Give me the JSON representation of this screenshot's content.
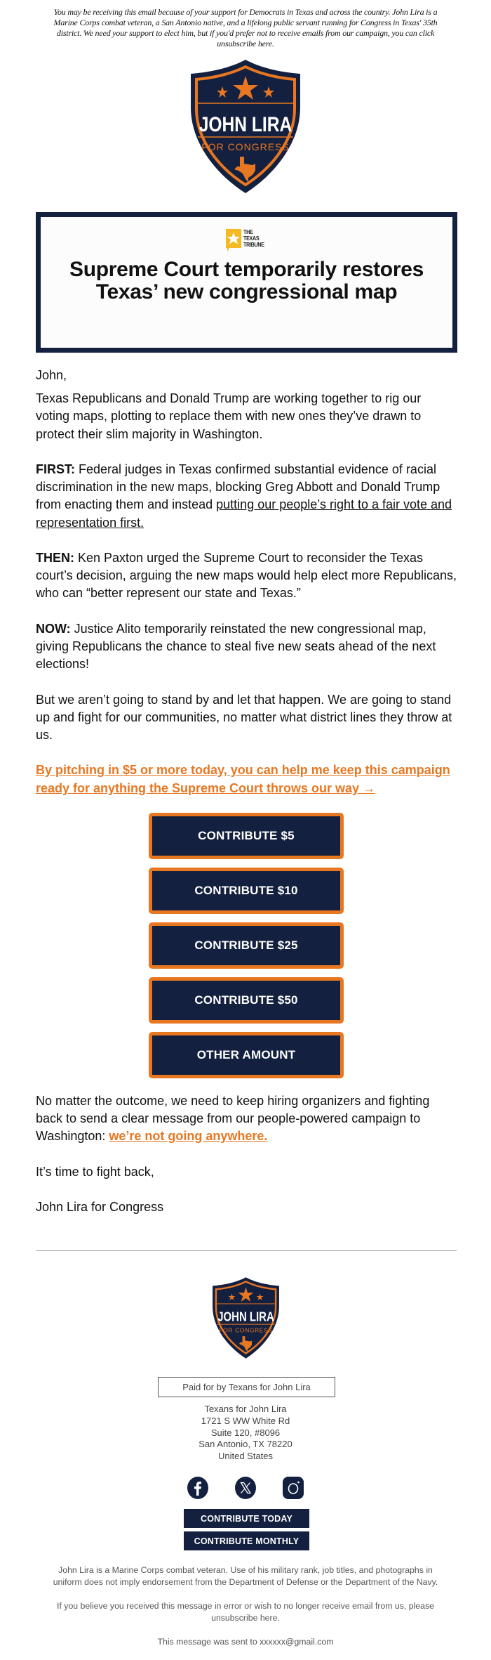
{
  "preheader": "You may be receiving this email because of your support for Democrats in Texas and across the country. John Lira is a Marine Corps combat veteran, a San Antonio native, and a lifelong public servant running for Congress in Texas' 35th district. We need your support to elect him, but if you'd prefer not to receive emails from our campaign, you can click unsubscribe here.",
  "logo": {
    "name": "JOHN LIRA",
    "tagline": "FOR CONGRESS"
  },
  "article": {
    "source_lines": [
      "THE",
      "TEXAS",
      "TRIBUNE"
    ],
    "headline": "Supreme Court temporarily restores Texas’ new congressional map"
  },
  "body": {
    "greeting": "John,",
    "p1": "Texas Republicans and Donald Trump are working together to rig our voting maps, plotting to replace them with new ones they’ve drawn to protect their slim majority in Washington.",
    "first_label": "FIRST:",
    "first_text": " Federal judges in Texas confirmed substantial evidence of racial discrimination in the new maps, blocking Greg Abbott and Donald Trump from enacting them and instead ",
    "first_link": "putting our people’s right to a fair vote and representation first.",
    "then_label": "THEN:",
    "then_text": " Ken Paxton urged the Supreme Court to reconsider the Texas court’s decision, arguing the new maps would help elect more Republicans, who can “better represent our state and Texas.”",
    "now_label": "NOW:",
    "now_text": " Justice Alito temporarily reinstated the new congressional map, giving Republicans the chance to steal five new seats ahead of the next elections!",
    "p5": "But we aren’t going to stand by and let that happen. We are going to stand up and fight for our communities, no matter what district lines they throw at us.",
    "cta_link": "By pitching in $5 or more today, you can help me keep this campaign ready for anything the Supreme Court throws our way →",
    "buttons": [
      "CONTRIBUTE $5",
      "CONTRIBUTE $10",
      "CONTRIBUTE $25",
      "CONTRIBUTE $50",
      "OTHER AMOUNT"
    ],
    "p6_text": "No matter the outcome, we need to keep hiring organizers and fighting back to send a clear message from our people-powered campaign to Washington: ",
    "p6_link": "we’re not going anywhere.",
    "signoff": "It’s time to fight back,",
    "signature": "John Lira for Congress"
  },
  "footer": {
    "paid_for": "Paid for by Texans for John Lira",
    "address": [
      "Texans for John Lira",
      "1721 S WW White Rd",
      "Suite 120, #8096",
      "San Antonio, TX 78220",
      "United States"
    ],
    "social": [
      "facebook-icon",
      "x-icon",
      "instagram-icon"
    ],
    "contribute_today": "CONTRIBUTE TODAY",
    "contribute_monthly": "CONTRIBUTE MONTHLY",
    "disclaimer": "John Lira is a Marine Corps combat veteran. Use of his military rank, job titles, and photographs in uniform does not imply endorsement from the Department of Defense or the Department of the Navy.",
    "unsubscribe": "If you believe you received this message in error or wish to no longer receive email from us, please unsubscribe here.",
    "sent_to": "This message was sent to xxxxxx@gmail.com"
  },
  "colors": {
    "navy": "#13203f",
    "orange": "#e87722",
    "tribune_yellow": "#f5b923"
  }
}
